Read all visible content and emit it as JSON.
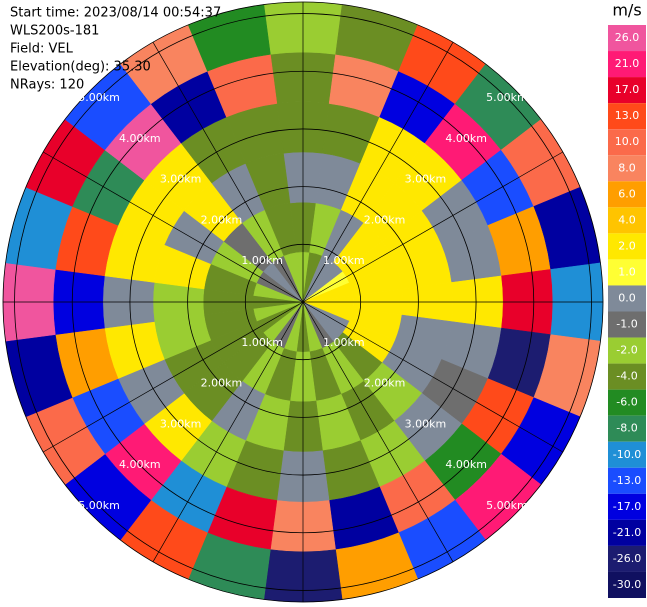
{
  "chart_data": {
    "type": "ppi",
    "header": [
      "Start time: 2023/08/14 00:54:37",
      "WLS200s-181",
      "Field: VEL",
      "Elevation(deg): 35.30",
      "NRays: 120"
    ],
    "unit": "m/s",
    "rmax": 5.2,
    "rings": [
      {
        "value": 1,
        "label": "1.00km"
      },
      {
        "value": 2,
        "label": "2.00km"
      },
      {
        "value": 3,
        "label": "3.00km"
      },
      {
        "value": 4,
        "label": "4.00km"
      },
      {
        "value": 5,
        "label": "5.00km"
      }
    ],
    "colorbar_ticks": [
      {
        "value": 26,
        "label": "26.0"
      },
      {
        "value": 21,
        "label": "21.0"
      },
      {
        "value": 17,
        "label": "17.0"
      },
      {
        "value": 13,
        "label": "13.0"
      },
      {
        "value": 10,
        "label": "10.0"
      },
      {
        "value": 8,
        "label": "8.0"
      },
      {
        "value": 6,
        "label": "6.0"
      },
      {
        "value": 4,
        "label": "4.0"
      },
      {
        "value": 2,
        "label": "2.0"
      },
      {
        "value": 1,
        "label": "1.0"
      },
      {
        "value": 0,
        "label": "0.0"
      },
      {
        "value": -1,
        "label": "-1.0"
      },
      {
        "value": -2,
        "label": "-2.0"
      },
      {
        "value": -4,
        "label": "-4.0"
      },
      {
        "value": -6,
        "label": "-6.0"
      },
      {
        "value": -8,
        "label": "-8.0"
      },
      {
        "value": -10,
        "label": "-10.0"
      },
      {
        "value": -13,
        "label": "-13.0"
      },
      {
        "value": -17,
        "label": "-17.0"
      },
      {
        "value": -21,
        "label": "-21.0"
      },
      {
        "value": -26,
        "label": "-26.0"
      },
      {
        "value": -30,
        "label": "-30.0"
      }
    ],
    "colors": [
      "#f0559e",
      "#ff1a75",
      "#e8002a",
      "#ff4a1a",
      "#fb6a4a",
      "#f9845f",
      "#ff9e00",
      "#ffc400",
      "#ffe800",
      "#ffff33",
      "#7f8a99",
      "#6e6e6e",
      "#9acd32",
      "#6b8e23",
      "#228b22",
      "#2e8b57",
      "#1f8fd6",
      "#1a4dff",
      "#0000e0",
      "#0000a0",
      "#1c1c70",
      "#101060"
    ],
    "azimuths": [
      0,
      15,
      30,
      45,
      60,
      75,
      90,
      105,
      120,
      135,
      150,
      165,
      180,
      195,
      210,
      225,
      240,
      255,
      270,
      285,
      300,
      315,
      330,
      345
    ],
    "gates": [
      0,
      0.87,
      1.73,
      2.6,
      3.47,
      4.33,
      5.2
    ],
    "values": [
      [
        -1.5,
        -2.5,
        0.5,
        -3,
        -2.5,
        -1.5
      ],
      [
        -2.5,
        -1.5,
        0.5,
        -2.5,
        8,
        -3
      ],
      [
        0.5,
        0.5,
        2.5,
        3,
        -17,
        13
      ],
      [
        0.5,
        2.5,
        3,
        2.5,
        21,
        -8
      ],
      [
        1.5,
        3,
        3,
        0.5,
        -13,
        10
      ],
      [
        2.5,
        3,
        2.5,
        0.5,
        6,
        -21
      ],
      [
        3,
        3,
        3,
        2.5,
        17,
        -10
      ],
      [
        2.5,
        3,
        0.5,
        0.5,
        -26,
        8
      ],
      [
        0.5,
        2.5,
        0.5,
        -0.5,
        13,
        -17
      ],
      [
        0.5,
        -2.5,
        -1.5,
        0.5,
        -6,
        21
      ],
      [
        -0.5,
        -1.5,
        -2.5,
        -1.5,
        10,
        -13
      ],
      [
        -1.5,
        -2.5,
        -1.5,
        -3,
        -21,
        6
      ],
      [
        -2.5,
        -1.5,
        -2.5,
        0.5,
        8,
        -26
      ],
      [
        -1.5,
        -2.5,
        -1.5,
        -3,
        17,
        -8
      ],
      [
        -0.5,
        -1.5,
        0.5,
        -1.5,
        -10,
        13
      ],
      [
        -1.5,
        -2.5,
        -2.5,
        2.5,
        21,
        -17
      ],
      [
        -2.5,
        -3,
        -2.5,
        0.5,
        -13,
        10
      ],
      [
        -1.5,
        -2.5,
        -1.5,
        2.5,
        6,
        -21
      ],
      [
        -2.5,
        -2.5,
        -1.5,
        0.5,
        -17,
        26
      ],
      [
        -1.5,
        -2.5,
        2.5,
        3,
        13,
        -10
      ],
      [
        -0.5,
        -1.5,
        0.5,
        2.5,
        -8,
        17
      ],
      [
        0.5,
        -0.5,
        2.5,
        3,
        27,
        -13
      ],
      [
        -0.5,
        -1.5,
        0.5,
        -2.5,
        -21,
        8
      ],
      [
        -1.5,
        -2.5,
        -2.5,
        -3,
        10,
        -6
      ]
    ]
  }
}
